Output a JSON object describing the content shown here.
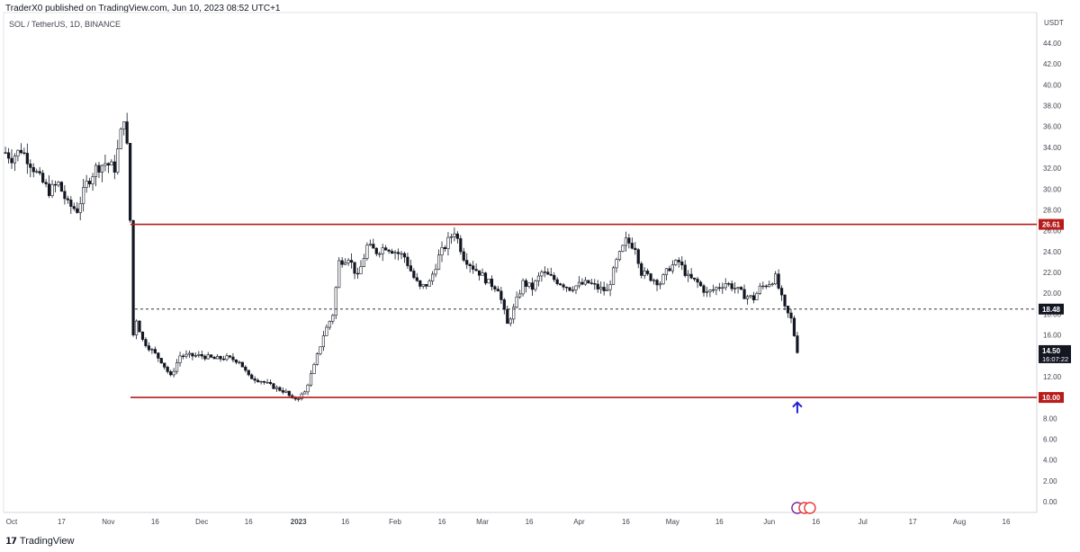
{
  "header": {
    "published": "TraderX0 published on TradingView.com, Jun 10, 2023 08:52 UTC+1",
    "symbol": "SOL / TetherUS, 1D, BINANCE",
    "currency": "USDT"
  },
  "footer": {
    "brand": "TradingView",
    "logo_icon": "tradingview-logo-icon"
  },
  "colors": {
    "candle": "#131722",
    "level_line": "#b71c1c",
    "dashed_line": "#131722",
    "arrow": "#1e22d6",
    "axis_text": "#434651",
    "label_dark": "#131722"
  },
  "chart_data": {
    "type": "candlestick",
    "title": "",
    "xlabel": "",
    "ylabel": "",
    "ylim": [
      0,
      46
    ],
    "y_ticks": [
      "0.00",
      "2.00",
      "4.00",
      "6.00",
      "8.00",
      "10.00",
      "12.00",
      "14.00",
      "16.00",
      "18.00",
      "20.00",
      "22.00",
      "24.00",
      "26.00",
      "28.00",
      "30.00",
      "32.00",
      "34.00",
      "36.00",
      "38.00",
      "40.00",
      "42.00",
      "44.00"
    ],
    "x_ticks": [
      {
        "label": "Oct",
        "date": "2022-10-01"
      },
      {
        "label": "17",
        "date": "2022-10-17"
      },
      {
        "label": "Nov",
        "date": "2022-11-01"
      },
      {
        "label": "16",
        "date": "2022-11-16"
      },
      {
        "label": "Dec",
        "date": "2022-12-01"
      },
      {
        "label": "16",
        "date": "2022-12-16"
      },
      {
        "label": "2023",
        "date": "2023-01-01"
      },
      {
        "label": "16",
        "date": "2023-01-16"
      },
      {
        "label": "Feb",
        "date": "2023-02-01"
      },
      {
        "label": "16",
        "date": "2023-02-16"
      },
      {
        "label": "Mar",
        "date": "2023-03-01"
      },
      {
        "label": "16",
        "date": "2023-03-16"
      },
      {
        "label": "Apr",
        "date": "2023-04-01"
      },
      {
        "label": "16",
        "date": "2023-04-16"
      },
      {
        "label": "May",
        "date": "2023-05-01"
      },
      {
        "label": "16",
        "date": "2023-05-16"
      },
      {
        "label": "Jun",
        "date": "2023-06-01"
      },
      {
        "label": "16",
        "date": "2023-06-16"
      },
      {
        "label": "Jul",
        "date": "2023-07-01"
      },
      {
        "label": "17",
        "date": "2023-07-17"
      },
      {
        "label": "Aug",
        "date": "2023-08-01"
      },
      {
        "label": "16",
        "date": "2023-08-16"
      }
    ],
    "closes": [
      [
        "2022-09-29",
        33.5
      ],
      [
        "2022-10-01",
        33.0
      ],
      [
        "2022-10-04",
        33.8
      ],
      [
        "2022-10-07",
        32.5
      ],
      [
        "2022-10-10",
        31.0
      ],
      [
        "2022-10-13",
        29.8
      ],
      [
        "2022-10-16",
        30.5
      ],
      [
        "2022-10-19",
        28.5
      ],
      [
        "2022-10-22",
        28.0
      ],
      [
        "2022-10-25",
        30.5
      ],
      [
        "2022-10-28",
        32.0
      ],
      [
        "2022-10-31",
        32.5
      ],
      [
        "2022-11-03",
        32.0
      ],
      [
        "2022-11-06",
        37.0
      ],
      [
        "2022-11-07",
        34.0
      ],
      [
        "2022-11-08",
        27.0
      ],
      [
        "2022-11-09",
        16.0
      ],
      [
        "2022-11-10",
        17.5
      ],
      [
        "2022-11-12",
        15.5
      ],
      [
        "2022-11-15",
        14.5
      ],
      [
        "2022-11-18",
        13.5
      ],
      [
        "2022-11-21",
        12.0
      ],
      [
        "2022-11-24",
        14.0
      ],
      [
        "2022-11-27",
        14.0
      ],
      [
        "2022-12-01",
        14.0
      ],
      [
        "2022-12-05",
        13.7
      ],
      [
        "2022-12-09",
        13.8
      ],
      [
        "2022-12-13",
        13.5
      ],
      [
        "2022-12-16",
        12.0
      ],
      [
        "2022-12-20",
        11.6
      ],
      [
        "2022-12-24",
        11.0
      ],
      [
        "2022-12-28",
        10.5
      ],
      [
        "2022-12-30",
        9.8
      ],
      [
        "2023-01-01",
        10.0
      ],
      [
        "2023-01-03",
        10.5
      ],
      [
        "2023-01-06",
        13.0
      ],
      [
        "2023-01-09",
        16.0
      ],
      [
        "2023-01-12",
        18.0
      ],
      [
        "2023-01-14",
        23.0
      ],
      [
        "2023-01-17",
        23.5
      ],
      [
        "2023-01-20",
        21.5
      ],
      [
        "2023-01-23",
        24.5
      ],
      [
        "2023-01-26",
        24.0
      ],
      [
        "2023-01-29",
        24.5
      ],
      [
        "2023-02-01",
        24.0
      ],
      [
        "2023-02-04",
        23.5
      ],
      [
        "2023-02-07",
        21.5
      ],
      [
        "2023-02-09",
        20.5
      ],
      [
        "2023-02-12",
        21.0
      ],
      [
        "2023-02-15",
        23.5
      ],
      [
        "2023-02-18",
        25.0
      ],
      [
        "2023-02-20",
        26.0
      ],
      [
        "2023-02-23",
        23.5
      ],
      [
        "2023-02-26",
        22.5
      ],
      [
        "2023-02-28",
        22.0
      ],
      [
        "2023-03-03",
        21.0
      ],
      [
        "2023-03-06",
        20.5
      ],
      [
        "2023-03-09",
        17.0
      ],
      [
        "2023-03-11",
        18.5
      ],
      [
        "2023-03-14",
        21.0
      ],
      [
        "2023-03-17",
        20.5
      ],
      [
        "2023-03-20",
        22.0
      ],
      [
        "2023-03-23",
        21.5
      ],
      [
        "2023-03-26",
        21.0
      ],
      [
        "2023-03-29",
        20.5
      ],
      [
        "2023-04-01",
        20.8
      ],
      [
        "2023-04-04",
        21.0
      ],
      [
        "2023-04-07",
        20.5
      ],
      [
        "2023-04-10",
        20.2
      ],
      [
        "2023-04-13",
        23.0
      ],
      [
        "2023-04-16",
        25.0
      ],
      [
        "2023-04-19",
        24.5
      ],
      [
        "2023-04-21",
        22.0
      ],
      [
        "2023-04-24",
        21.5
      ],
      [
        "2023-04-27",
        21.0
      ],
      [
        "2023-04-30",
        22.5
      ],
      [
        "2023-05-03",
        23.0
      ],
      [
        "2023-05-06",
        21.5
      ],
      [
        "2023-05-09",
        21.0
      ],
      [
        "2023-05-12",
        20.0
      ],
      [
        "2023-05-15",
        20.5
      ],
      [
        "2023-05-18",
        21.0
      ],
      [
        "2023-05-21",
        20.5
      ],
      [
        "2023-05-24",
        19.8
      ],
      [
        "2023-05-27",
        19.5
      ],
      [
        "2023-05-29",
        20.5
      ],
      [
        "2023-06-01",
        21.0
      ],
      [
        "2023-06-03",
        21.5
      ],
      [
        "2023-06-05",
        19.5
      ],
      [
        "2023-06-06",
        18.5
      ],
      [
        "2023-06-08",
        17.5
      ],
      [
        "2023-06-10",
        14.5
      ]
    ],
    "levels": [
      {
        "name": "resistance",
        "value": 26.61,
        "label": "26.61",
        "style": "solid"
      },
      {
        "name": "mid",
        "value": 18.48,
        "label": "18.48",
        "style": "dashed"
      },
      {
        "name": "support",
        "value": 10.0,
        "label": "10.00",
        "style": "solid"
      }
    ],
    "last_price": {
      "value": 14.5,
      "label": "14.50",
      "countdown": "16:07:22"
    },
    "annotations": [
      {
        "type": "arrow-up",
        "date": "2023-06-10",
        "value": 9.0
      }
    ]
  }
}
